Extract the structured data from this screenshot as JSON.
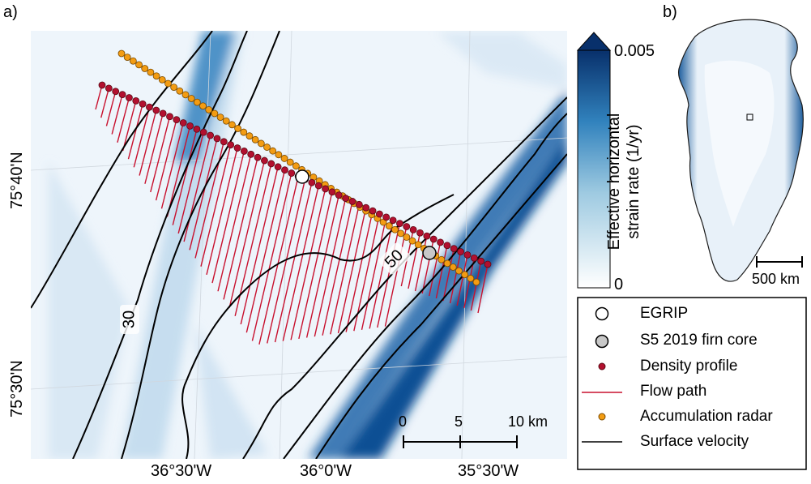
{
  "panel_a": {
    "label": "a)",
    "x_ticks": [
      "36°30'W",
      "36°0'W",
      "35°30'W"
    ],
    "y_ticks": [
      "75°40'N",
      "75°30'N"
    ],
    "contour_labels": [
      "30",
      "50"
    ],
    "scalebar": {
      "ticks": [
        "0",
        "5",
        "10 km"
      ]
    }
  },
  "panel_b": {
    "label": "b)",
    "scalebar_label": "500 km"
  },
  "colorbar": {
    "title_line1": "Effective horizontal",
    "title_line2": "strain rate (1/yr)",
    "max_label": "0.005",
    "min_label": "0",
    "min_value": 0,
    "max_value": 0.005,
    "color_low": "#ffffff",
    "color_high": "#08306b"
  },
  "legend": {
    "items": [
      {
        "label": "EGRIP",
        "symbol": "circle-white"
      },
      {
        "label": "S5 2019 firn core",
        "symbol": "circle-grey"
      },
      {
        "label": "Density profile",
        "symbol": "dot-red"
      },
      {
        "label": "Flow path",
        "symbol": "line-red"
      },
      {
        "label": "Accumulation radar",
        "symbol": "dot-orange"
      },
      {
        "label": "Surface velocity",
        "symbol": "line-black"
      }
    ]
  },
  "colors": {
    "density_profile": "#b2102f",
    "flow_path": "#c8102e",
    "accumulation_radar": "#f39c12",
    "egrip": "#ffffff",
    "s5_core": "#c8c8c8",
    "surface_velocity": "#000000"
  }
}
